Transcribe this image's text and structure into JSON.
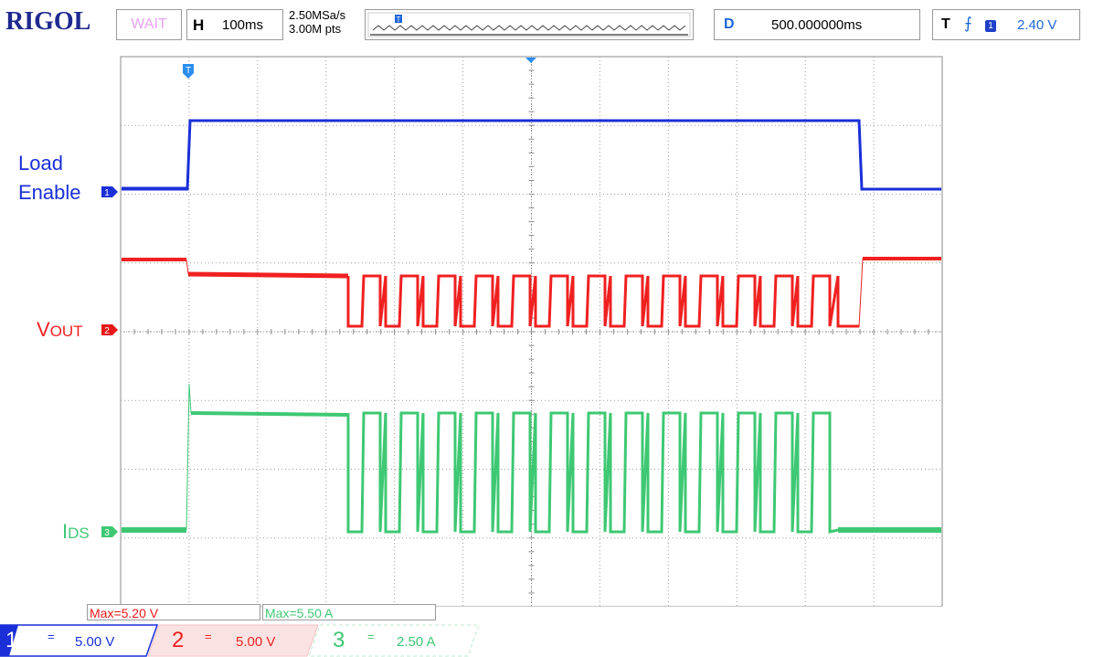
{
  "header": {
    "brand": "RIGOL",
    "run_state": "WAIT",
    "horizontal_key": "H",
    "timebase": "100ms",
    "sample_rate": "2.50MSa/s",
    "memory_depth": "3.00M pts",
    "delay_key": "D",
    "delay_value": "500.000000ms",
    "trigger_key": "T",
    "trigger_source": "1",
    "trigger_level": "2.40 V",
    "trigger_marker": "T"
  },
  "traces": {
    "ch1_label_line1": "Load",
    "ch1_label_line2": "Enable",
    "ch1_marker": "1",
    "ch2_label_prefix": "V",
    "ch2_label_suffix": "OUT",
    "ch2_marker": "2",
    "ch3_label_prefix": "I",
    "ch3_label_suffix": "DS",
    "ch3_marker": "3"
  },
  "measurements": {
    "max_v": "Max=5.20 V",
    "max_a": "Max=5.50 A"
  },
  "channels": [
    {
      "num": "1",
      "coupling": "=",
      "scale": "5.00 V",
      "color": "#1a2fd8"
    },
    {
      "num": "2",
      "coupling": "=",
      "scale": "5.00 V",
      "color": "#f02020"
    },
    {
      "num": "3",
      "coupling": "=",
      "scale": "2.50 A",
      "color": "#3ec873"
    }
  ],
  "colors": {
    "ch1": "#1a2fd8",
    "ch2": "#f02020",
    "ch3": "#3ec873",
    "brand": "#1f2a8f",
    "accent": "#1e66d8"
  }
}
